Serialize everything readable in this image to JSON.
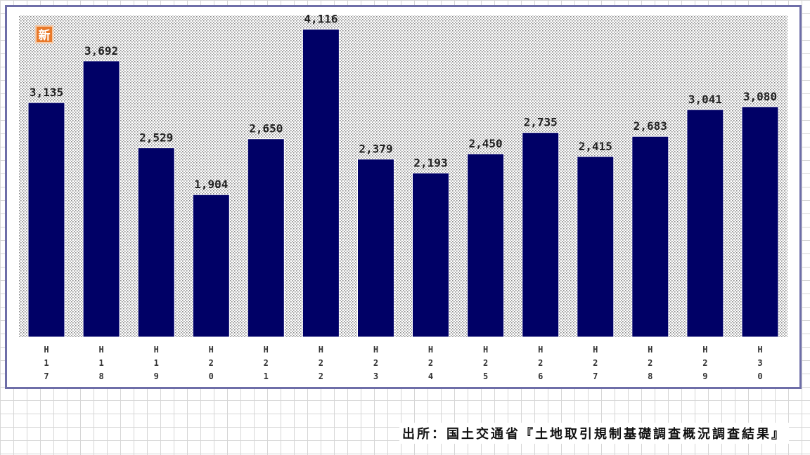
{
  "chart_data": {
    "type": "bar",
    "categories": [
      "H17",
      "H18",
      "H19",
      "H20",
      "H21",
      "H22",
      "H23",
      "H24",
      "H25",
      "H26",
      "H27",
      "H28",
      "H29",
      "H30"
    ],
    "values": [
      3135,
      3692,
      2529,
      1904,
      2650,
      4116,
      2379,
      2193,
      2450,
      2735,
      2415,
      2683,
      3041,
      3080
    ],
    "value_labels": [
      "3,135",
      "3,692",
      "2,529",
      "1,904",
      "2,650",
      "4,116",
      "2,379",
      "2,193",
      "2,450",
      "2,735",
      "2,415",
      "2,683",
      "3,041",
      "3,080"
    ],
    "tick_labels": [
      [
        "H",
        "1",
        "7"
      ],
      [
        "H",
        "1",
        "8"
      ],
      [
        "H",
        "1",
        "9"
      ],
      [
        "H",
        "2",
        "0"
      ],
      [
        "H",
        "2",
        "1"
      ],
      [
        "H",
        "2",
        "2"
      ],
      [
        "H",
        "2",
        "3"
      ],
      [
        "H",
        "2",
        "4"
      ],
      [
        "H",
        "2",
        "5"
      ],
      [
        "H",
        "2",
        "6"
      ],
      [
        "H",
        "2",
        "7"
      ],
      [
        "H",
        "2",
        "8"
      ],
      [
        "H",
        "2",
        "9"
      ],
      [
        "H",
        "3",
        "0"
      ]
    ],
    "ylim": [
      0,
      4300
    ],
    "grid": false,
    "bar_color": "#000066",
    "plot_background": "dotted gray"
  },
  "badge": {
    "text": "新",
    "color": "#e8792a"
  },
  "source": "出所：国土交通省『土地取引規制基礎調査概況調査結果』"
}
